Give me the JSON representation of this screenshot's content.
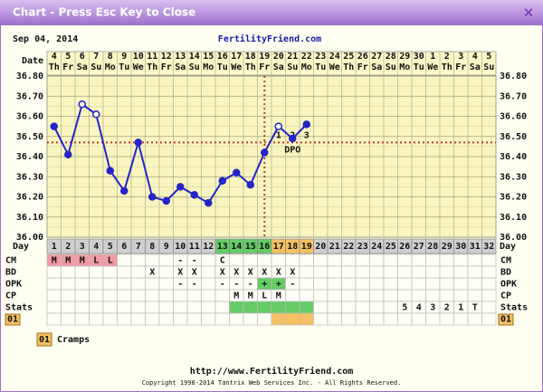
{
  "window": {
    "title": "Chart - Press Esc Key to Close",
    "close": "×"
  },
  "header": {
    "date": "Sep 04, 2014",
    "site": "FertilityFriend.com"
  },
  "chart_data": {
    "type": "line",
    "date_label": "Date",
    "dates": [
      4,
      5,
      6,
      7,
      8,
      9,
      10,
      11,
      12,
      13,
      14,
      15,
      16,
      17,
      18,
      19,
      20,
      21,
      22,
      23,
      24,
      25,
      26,
      27,
      28,
      29,
      30,
      1,
      2,
      3,
      4,
      5
    ],
    "weekdays": [
      "Th",
      "Fr",
      "Sa",
      "Su",
      "Mo",
      "Tu",
      "We",
      "Th",
      "Fr",
      "Sa",
      "Su",
      "Mo",
      "Tu",
      "We",
      "Th",
      "Fr",
      "Sa",
      "Su",
      "Mo",
      "Tu",
      "We",
      "Th",
      "Fr",
      "Sa",
      "Su",
      "Mo",
      "Tu",
      "We",
      "Th",
      "Fr",
      "Sa",
      "Su"
    ],
    "day_label": "Day",
    "categories": [
      1,
      2,
      3,
      4,
      5,
      6,
      7,
      8,
      9,
      10,
      11,
      12,
      13,
      14,
      15,
      16,
      17,
      18,
      19,
      20,
      21,
      22,
      23,
      24,
      25,
      26,
      27,
      28,
      29,
      30,
      31,
      32
    ],
    "values": [
      36.55,
      36.41,
      36.66,
      36.61,
      36.33,
      36.23,
      36.47,
      36.2,
      36.18,
      36.25,
      36.21,
      36.17,
      36.28,
      36.32,
      36.26,
      36.42,
      36.55,
      36.49,
      36.56,
      null,
      null,
      null,
      null,
      null,
      null,
      null,
      null,
      null,
      null,
      null,
      null,
      null
    ],
    "color": "#2424c8",
    "open_points": [
      3,
      4,
      17
    ],
    "ylim": [
      36.0,
      36.8
    ],
    "yticks": [
      {
        "value": 36.0,
        "label": "36.00"
      },
      {
        "value": 36.1,
        "label": "36.10"
      },
      {
        "value": 36.2,
        "label": "36.20"
      },
      {
        "value": 36.3,
        "label": "36.30"
      },
      {
        "value": 36.4,
        "label": "36.40"
      },
      {
        "value": 36.5,
        "label": "36.50"
      },
      {
        "value": 36.6,
        "label": "36.60"
      },
      {
        "value": 36.7,
        "label": "36.70"
      },
      {
        "value": 36.8,
        "label": "36.80"
      }
    ],
    "grid": true,
    "coverline": 36.47,
    "coverline_color": "#c0392b",
    "ovulation_day": 16,
    "dpo_labels": [
      "1",
      "2",
      "3"
    ],
    "dpo_title": "DPO",
    "day_fills": [
      {
        "from": 13,
        "to": 16,
        "color": "#66cc66"
      },
      {
        "from": 17,
        "to": 19,
        "color": "#f5c163"
      }
    ]
  },
  "table": {
    "rows": [
      {
        "label": "CM",
        "cells": [
          "M",
          "M",
          "M",
          "L",
          "L",
          null,
          null,
          null,
          null,
          "-",
          "-",
          null,
          "C",
          null,
          null,
          null,
          null,
          null,
          null,
          null,
          null,
          null,
          null,
          null,
          null,
          null,
          null,
          null,
          null,
          null,
          null,
          null
        ],
        "fills": [
          {
            "from": 1,
            "to": 5,
            "color": "#f29aa6"
          }
        ]
      },
      {
        "label": "BD",
        "cells": [
          null,
          null,
          null,
          null,
          null,
          null,
          null,
          "X",
          null,
          "X",
          "X",
          null,
          "X",
          "X",
          "X",
          "X",
          "X",
          "X",
          null,
          null,
          null,
          null,
          null,
          null,
          null,
          null,
          null,
          null,
          null,
          null,
          null,
          null
        ],
        "fills": []
      },
      {
        "label": "OPK",
        "cells": [
          null,
          null,
          null,
          null,
          null,
          null,
          null,
          null,
          null,
          "-",
          "-",
          null,
          "-",
          "-",
          "-",
          "+",
          "+",
          "-",
          null,
          null,
          null,
          null,
          null,
          null,
          null,
          null,
          null,
          null,
          null,
          null,
          null,
          null
        ],
        "fills": [
          {
            "from": 16,
            "to": 17,
            "color": "#66cc66"
          }
        ]
      },
      {
        "label": "CP",
        "cells": [
          null,
          null,
          null,
          null,
          null,
          null,
          null,
          null,
          null,
          null,
          null,
          null,
          null,
          "M",
          "M",
          "L",
          "M",
          null,
          null,
          null,
          null,
          null,
          null,
          null,
          null,
          null,
          null,
          null,
          null,
          null,
          null,
          null
        ],
        "fills": []
      },
      {
        "label": "Stats",
        "cells": [
          null,
          null,
          null,
          null,
          null,
          null,
          null,
          null,
          null,
          null,
          null,
          null,
          null,
          null,
          null,
          null,
          null,
          null,
          null,
          null,
          null,
          null,
          null,
          null,
          null,
          "5",
          "4",
          "3",
          "2",
          "1",
          "T",
          null
        ],
        "fills": [
          {
            "from": 14,
            "to": 19,
            "color": "#66cc66"
          }
        ]
      },
      {
        "label": "01",
        "boxed": true,
        "cells": [
          null,
          null,
          null,
          null,
          null,
          null,
          null,
          null,
          null,
          null,
          null,
          null,
          null,
          null,
          null,
          null,
          null,
          null,
          null,
          null,
          null,
          null,
          null,
          null,
          null,
          null,
          null,
          null,
          null,
          null,
          null,
          null
        ],
        "fills": [
          {
            "from": 17,
            "to": 19,
            "color": "#f5c163"
          }
        ]
      }
    ]
  },
  "legend": [
    {
      "code": "01",
      "text": "Cramps"
    }
  ],
  "footer": {
    "url": "http://www.FertilityFriend.com",
    "copyright": "Copyright 1998-2014 Tantrix Web Services Inc. - All Rights Reserved."
  }
}
